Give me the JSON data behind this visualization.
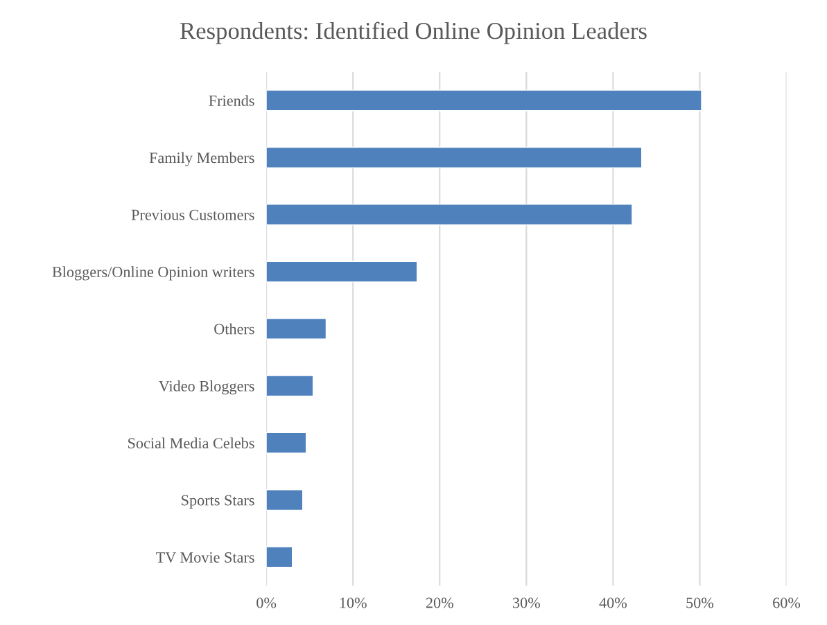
{
  "chart_data": {
    "type": "bar",
    "orientation": "horizontal",
    "title": "Respondents: Identified Online Opinion Leaders",
    "categories": [
      "Friends",
      "Family Members",
      "Previous Customers",
      "Bloggers/Online Opinion writers",
      "Others",
      "Video Bloggers",
      "Social Media Celebs",
      "Sports Stars",
      "TV Movie Stars"
    ],
    "values": [
      50.2,
      43.3,
      42.2,
      17.4,
      6.9,
      5.4,
      4.6,
      4.2,
      3.0
    ],
    "color": "#4f81bd",
    "xlim": [
      0,
      60
    ],
    "xticks": [
      {
        "value": 0,
        "label": "0%"
      },
      {
        "value": 10,
        "label": "10%"
      },
      {
        "value": 20,
        "label": "20%"
      },
      {
        "value": 30,
        "label": "30%"
      },
      {
        "value": 40,
        "label": "40%"
      },
      {
        "value": 50,
        "label": "50%"
      },
      {
        "value": 60,
        "label": "60%"
      }
    ],
    "grid": "x",
    "legend": false
  }
}
